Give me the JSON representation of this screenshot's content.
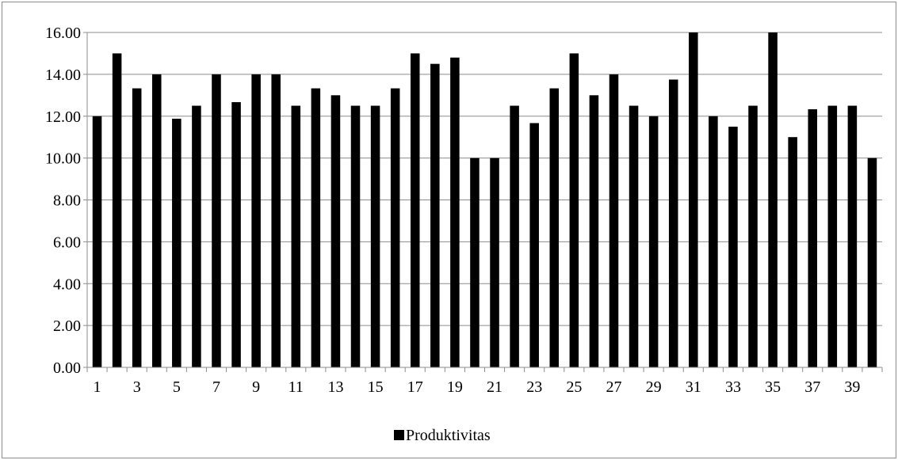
{
  "chart_data": {
    "type": "bar",
    "categories": [
      "1",
      "2",
      "3",
      "4",
      "5",
      "6",
      "7",
      "8",
      "9",
      "10",
      "11",
      "12",
      "13",
      "14",
      "15",
      "16",
      "17",
      "18",
      "19",
      "20",
      "21",
      "22",
      "23",
      "24",
      "25",
      "26",
      "27",
      "28",
      "29",
      "30",
      "31",
      "32",
      "33",
      "34",
      "35",
      "36",
      "37",
      "38",
      "39",
      "40"
    ],
    "x_tick_labels": [
      "1",
      "3",
      "5",
      "7",
      "9",
      "11",
      "13",
      "15",
      "17",
      "19",
      "21",
      "23",
      "25",
      "27",
      "29",
      "31",
      "33",
      "35",
      "37",
      "39"
    ],
    "series": [
      {
        "name": "Produktivitas",
        "color": "#000000",
        "values": [
          12.0,
          15.0,
          13.33,
          14.0,
          11.88,
          12.5,
          14.0,
          12.67,
          14.0,
          14.0,
          12.5,
          13.33,
          13.0,
          12.5,
          12.5,
          13.33,
          15.0,
          14.5,
          14.8,
          10.0,
          10.0,
          12.5,
          11.67,
          13.33,
          15.0,
          13.0,
          14.0,
          12.5,
          12.0,
          13.75,
          16.0,
          12.0,
          11.5,
          12.5,
          16.0,
          11.0,
          12.33,
          12.5,
          12.5,
          10.0
        ]
      }
    ],
    "y_ticks": [
      "0.00",
      "2.00",
      "4.00",
      "6.00",
      "8.00",
      "10.00",
      "12.00",
      "14.00",
      "16.00"
    ],
    "ylim": [
      0,
      16
    ],
    "grid": true,
    "legend_position": "bottom"
  }
}
